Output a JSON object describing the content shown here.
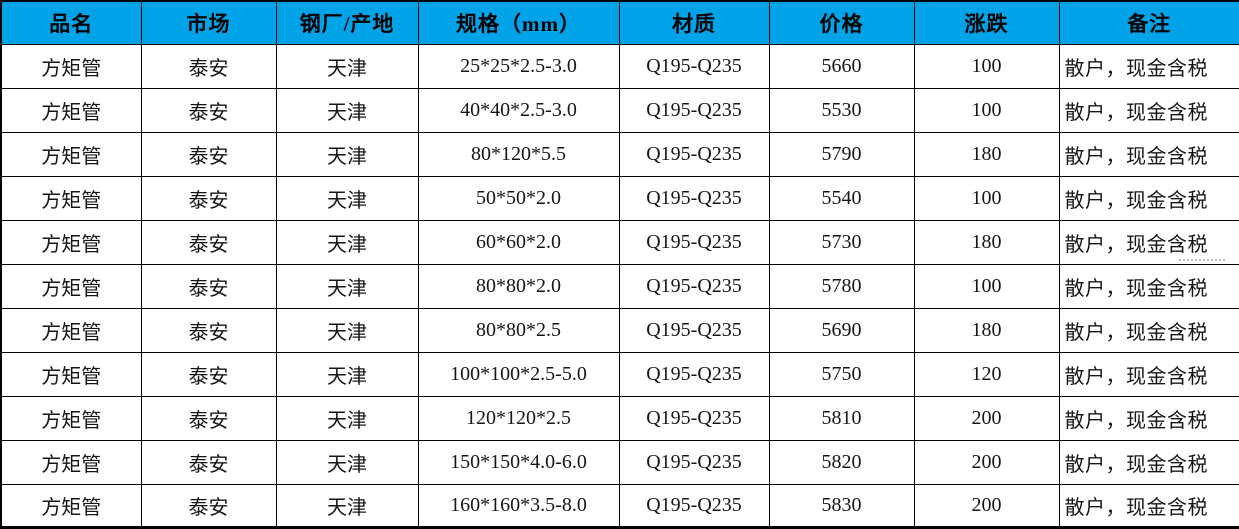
{
  "colors": {
    "header_bg": "#00a2e8",
    "border": "#000000",
    "body_text": "#161616"
  },
  "table": {
    "headers": [
      "品名",
      "市场",
      "钢厂/产地",
      "规格（mm）",
      "材质",
      "价格",
      "涨跌",
      "备注"
    ],
    "rows": [
      [
        "方矩管",
        "泰安",
        "天津",
        "25*25*2.5-3.0",
        "Q195-Q235",
        "5660",
        "100",
        "散户，现金含税"
      ],
      [
        "方矩管",
        "泰安",
        "天津",
        "40*40*2.5-3.0",
        "Q195-Q235",
        "5530",
        "100",
        "散户，现金含税"
      ],
      [
        "方矩管",
        "泰安",
        "天津",
        "80*120*5.5",
        "Q195-Q235",
        "5790",
        "180",
        "散户，现金含税"
      ],
      [
        "方矩管",
        "泰安",
        "天津",
        "50*50*2.0",
        "Q195-Q235",
        "5540",
        "100",
        "散户，现金含税"
      ],
      [
        "方矩管",
        "泰安",
        "天津",
        "60*60*2.0",
        "Q195-Q235",
        "5730",
        "180",
        "散户，现金含税"
      ],
      [
        "方矩管",
        "泰安",
        "天津",
        "80*80*2.0",
        "Q195-Q235",
        "5780",
        "100",
        "散户，现金含税"
      ],
      [
        "方矩管",
        "泰安",
        "天津",
        "80*80*2.5",
        "Q195-Q235",
        "5690",
        "180",
        "散户，现金含税"
      ],
      [
        "方矩管",
        "泰安",
        "天津",
        "100*100*2.5-5.0",
        "Q195-Q235",
        "5750",
        "120",
        "散户，现金含税"
      ],
      [
        "方矩管",
        "泰安",
        "天津",
        "120*120*2.5",
        "Q195-Q235",
        "5810",
        "200",
        "散户，现金含税"
      ],
      [
        "方矩管",
        "泰安",
        "天津",
        "150*150*4.0-6.0",
        "Q195-Q235",
        "5820",
        "200",
        "散户，现金含税"
      ],
      [
        "方矩管",
        "泰安",
        "天津",
        "160*160*3.5-8.0",
        "Q195-Q235",
        "5830",
        "200",
        "散户，现金含税"
      ]
    ]
  }
}
